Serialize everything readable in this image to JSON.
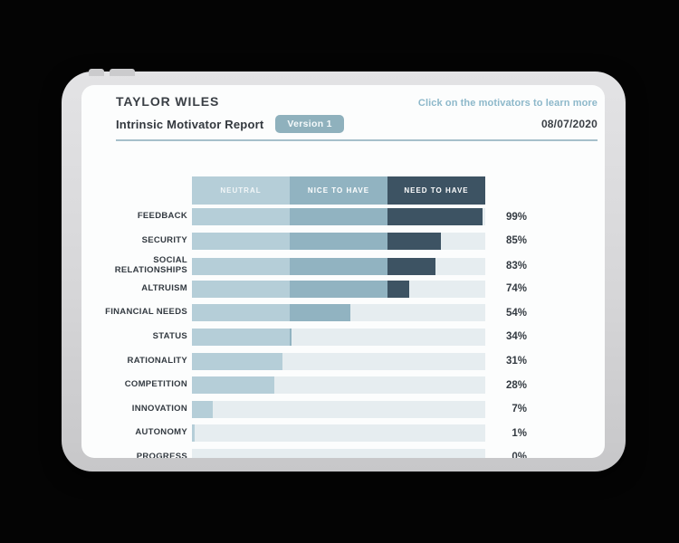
{
  "header": {
    "name": "TAYLOR WILES",
    "report_title": "Intrinsic Motivator Report",
    "version_badge": "Version 1",
    "hint": "Click on the motivators to learn more",
    "date": "08/07/2020"
  },
  "chart_data": {
    "type": "bar",
    "orientation": "horizontal",
    "title": "Intrinsic Motivator Report",
    "xlim": [
      0,
      100
    ],
    "grid": false,
    "legend_position": "top",
    "legend": [
      {
        "label": "NEUTRAL",
        "color": "#b5ced8"
      },
      {
        "label": "NICE TO HAVE",
        "color": "#91b3c1"
      },
      {
        "label": "NEED TO HAVE",
        "color": "#3d5363"
      }
    ],
    "segment_boundaries_pct": [
      33.33,
      66.67
    ],
    "track_color": "#e6edf0",
    "categories": [
      "FEEDBACK",
      "SECURITY",
      "SOCIAL RELATIONSHIPS",
      "ALTRUISM",
      "FINANCIAL NEEDS",
      "STATUS",
      "RATIONALITY",
      "COMPETITION",
      "INNOVATION",
      "AUTONOMY",
      "PROGRESS"
    ],
    "values": [
      99,
      85,
      83,
      74,
      54,
      34,
      31,
      28,
      7,
      1,
      0
    ],
    "value_labels": [
      "99%",
      "85%",
      "83%",
      "74%",
      "54%",
      "34%",
      "31%",
      "28%",
      "7%",
      "1%",
      "0%"
    ]
  }
}
